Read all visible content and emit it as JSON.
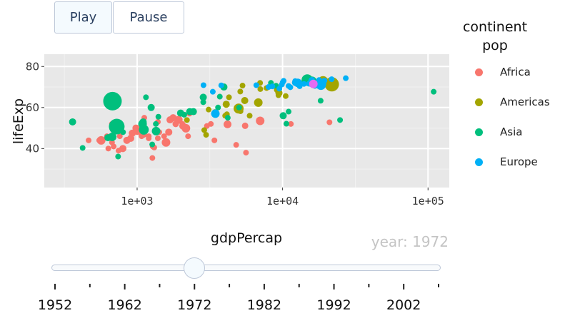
{
  "controls": {
    "play_label": "Play",
    "pause_label": "Pause"
  },
  "legend": {
    "title_line1": "continent",
    "title_line2": "pop",
    "items": [
      {
        "label": "Africa",
        "color": "#f8766d"
      },
      {
        "label": "Americas",
        "color": "#a3a500"
      },
      {
        "label": "Asia",
        "color": "#00bf7d"
      },
      {
        "label": "Europe",
        "color": "#00b0f6"
      }
    ],
    "extra_color": "#e76bf3"
  },
  "slider": {
    "current_value_label": "year: 1972",
    "current": 1972,
    "range": [
      1952,
      2007
    ],
    "tick_labels": [
      "1952",
      "1962",
      "1972",
      "1982",
      "1992",
      "2002"
    ]
  },
  "chart_data": {
    "type": "scatter",
    "xlabel": "gdpPercap",
    "ylabel": "lifeExp",
    "xscale": "log",
    "xlim": [
      230,
      140000
    ],
    "ylim": [
      21,
      86
    ],
    "xticks": [
      1000,
      10000,
      100000
    ],
    "xtick_labels": [
      "1e+03",
      "1e+04",
      "1e+05"
    ],
    "yticks": [
      40,
      60,
      80
    ],
    "ytick_labels": [
      "40",
      "60",
      "80"
    ],
    "grid": true,
    "legend_position": "right",
    "series": [
      {
        "name": "Africa",
        "color": "#f8766d",
        "points": [
          {
            "x": 4183,
            "y": 51.8,
            "r": 5.5
          },
          {
            "x": 4797,
            "y": 41.8,
            "r": 4
          },
          {
            "x": 1106,
            "y": 47.0,
            "r": 5
          },
          {
            "x": 1001,
            "y": 48.0,
            "r": 4
          },
          {
            "x": 549,
            "y": 44.0,
            "r": 4
          },
          {
            "x": 464,
            "y": 44.0,
            "r": 4
          },
          {
            "x": 1684,
            "y": 54.0,
            "r": 5
          },
          {
            "x": 1532,
            "y": 46.0,
            "r": 4
          },
          {
            "x": 1074,
            "y": 46.0,
            "r": 4
          },
          {
            "x": 1072,
            "y": 46.5,
            "r": 4
          },
          {
            "x": 904,
            "y": 45.0,
            "r": 5
          },
          {
            "x": 3213,
            "y": 52.0,
            "r": 4
          },
          {
            "x": 2061,
            "y": 51.0,
            "r": 5
          },
          {
            "x": 1389,
            "y": 53.0,
            "r": 4
          },
          {
            "x": 5527,
            "y": 51.1,
            "r": 4.5
          },
          {
            "x": 672,
            "y": 43.0,
            "r": 4
          },
          {
            "x": 566,
            "y": 44.0,
            "r": 6
          },
          {
            "x": 11401,
            "y": 52.0,
            "r": 4
          },
          {
            "x": 745,
            "y": 39.0,
            "r": 4
          },
          {
            "x": 1388,
            "y": 45.0,
            "r": 4
          },
          {
            "x": 1202,
            "y": 46.0,
            "r": 4
          },
          {
            "x": 1201,
            "y": 45.0,
            "r": 4
          },
          {
            "x": 1279,
            "y": 41.0,
            "r": 4
          },
          {
            "x": 1311,
            "y": 40.5,
            "r": 4
          },
          {
            "x": 21011,
            "y": 52.8,
            "r": 4
          },
          {
            "x": 1273,
            "y": 35.4,
            "r": 4
          },
          {
            "x": 2240,
            "y": 46.0,
            "r": 4
          },
          {
            "x": 3017,
            "y": 51.0,
            "r": 4
          },
          {
            "x": 1930,
            "y": 54.0,
            "r": 5.5
          },
          {
            "x": 5604,
            "y": 38.0,
            "r": 4
          },
          {
            "x": 634,
            "y": 40.0,
            "r": 4
          },
          {
            "x": 2165,
            "y": 49.9,
            "r": 6
          },
          {
            "x": 1420,
            "y": 48.0,
            "r": 4
          },
          {
            "x": 927,
            "y": 47.5,
            "r": 5
          },
          {
            "x": 7013,
            "y": 53.5,
            "r": 6
          },
          {
            "x": 1768,
            "y": 55.0,
            "r": 5
          },
          {
            "x": 798,
            "y": 40.0,
            "r": 5
          },
          {
            "x": 982,
            "y": 50.0,
            "r": 5
          },
          {
            "x": 671,
            "y": 52.0,
            "r": 4
          },
          {
            "x": 2290,
            "y": 57.0,
            "r": 4
          },
          {
            "x": 1842,
            "y": 52.0,
            "r": 4.5
          },
          {
            "x": 760,
            "y": 46.0,
            "r": 4
          },
          {
            "x": 850,
            "y": 44.0,
            "r": 5
          },
          {
            "x": 1050,
            "y": 49.0,
            "r": 5
          },
          {
            "x": 1650,
            "y": 48.0,
            "r": 5
          },
          {
            "x": 2050,
            "y": 52.0,
            "r": 4
          },
          {
            "x": 3400,
            "y": 44.0,
            "r": 4
          },
          {
            "x": 690,
            "y": 41.0,
            "r": 4
          },
          {
            "x": 1120,
            "y": 55.0,
            "r": 4
          },
          {
            "x": 620,
            "y": 46.0,
            "r": 4
          },
          {
            "x": 1580,
            "y": 43.0,
            "r": 6
          },
          {
            "x": 1960,
            "y": 54.0,
            "r": 4
          }
        ]
      },
      {
        "name": "Americas",
        "color": "#a3a500",
        "points": [
          {
            "x": 9443,
            "y": 67.1,
            "r": 5
          },
          {
            "x": 2980,
            "y": 46.7,
            "r": 4
          },
          {
            "x": 4985,
            "y": 59.5,
            "r": 7
          },
          {
            "x": 18971,
            "y": 72.9,
            "r": 7
          },
          {
            "x": 5494,
            "y": 63.4,
            "r": 5
          },
          {
            "x": 4098,
            "y": 61.6,
            "r": 5
          },
          {
            "x": 5118,
            "y": 67.8,
            "r": 4
          },
          {
            "x": 5305,
            "y": 70.7,
            "r": 4
          },
          {
            "x": 3430,
            "y": 57.8,
            "r": 4
          },
          {
            "x": 4141,
            "y": 56.7,
            "r": 4
          },
          {
            "x": 5139,
            "y": 58.2,
            "r": 4
          },
          {
            "x": 4032,
            "y": 56.0,
            "r": 4
          },
          {
            "x": 2894,
            "y": 49.0,
            "r": 4
          },
          {
            "x": 2200,
            "y": 53.9,
            "r": 4
          },
          {
            "x": 7031,
            "y": 69.0,
            "r": 4
          },
          {
            "x": 6809,
            "y": 62.4,
            "r": 6
          },
          {
            "x": 3101,
            "y": 59.0,
            "r": 4
          },
          {
            "x": 9371,
            "y": 66.0,
            "r": 4
          },
          {
            "x": 4281,
            "y": 65.0,
            "r": 4
          },
          {
            "x": 5937,
            "y": 56.0,
            "r": 4
          },
          {
            "x": 7003,
            "y": 72.0,
            "r": 4
          },
          {
            "x": 7760,
            "y": 69.5,
            "r": 4
          },
          {
            "x": 21806,
            "y": 71.3,
            "r": 10
          },
          {
            "x": 9231,
            "y": 68.7,
            "r": 5
          },
          {
            "x": 10505,
            "y": 65.6,
            "r": 4
          }
        ]
      },
      {
        "name": "Asia",
        "color": "#00bf7d",
        "points": [
          {
            "x": 740,
            "y": 36.1,
            "r": 4
          },
          {
            "x": 18269,
            "y": 63.3,
            "r": 4
          },
          {
            "x": 630,
            "y": 45.3,
            "r": 5
          },
          {
            "x": 422,
            "y": 40.3,
            "r": 4
          },
          {
            "x": 677,
            "y": 63.1,
            "r": 13
          },
          {
            "x": 8316,
            "y": 72.0,
            "r": 4
          },
          {
            "x": 724,
            "y": 50.7,
            "r": 11
          },
          {
            "x": 1111,
            "y": 49.2,
            "r": 7
          },
          {
            "x": 1249,
            "y": 60.0,
            "r": 5
          },
          {
            "x": 5023,
            "y": 60.0,
            "r": 4
          },
          {
            "x": 9022,
            "y": 70.6,
            "r": 4
          },
          {
            "x": 14779,
            "y": 73.4,
            "r": 8
          },
          {
            "x": 2110,
            "y": 56.5,
            "r": 4
          },
          {
            "x": 109348,
            "y": 67.7,
            "r": 4
          },
          {
            "x": 3702,
            "y": 65.3,
            "r": 4
          },
          {
            "x": 2849,
            "y": 65.0,
            "r": 5
          },
          {
            "x": 2850,
            "y": 62.6,
            "r": 4
          },
          {
            "x": 4200,
            "y": 55.0,
            "r": 4
          },
          {
            "x": 674,
            "y": 45.7,
            "r": 6
          },
          {
            "x": 1100,
            "y": 53.0,
            "r": 5
          },
          {
            "x": 1345,
            "y": 52.0,
            "r": 4
          },
          {
            "x": 10619,
            "y": 52.1,
            "r": 4
          },
          {
            "x": 1090,
            "y": 52.0,
            "r": 6
          },
          {
            "x": 1400,
            "y": 55.5,
            "r": 4
          },
          {
            "x": 24837,
            "y": 53.9,
            "r": 4
          },
          {
            "x": 2436,
            "y": 58.0,
            "r": 5
          },
          {
            "x": 3600,
            "y": 60.0,
            "r": 4
          },
          {
            "x": 1150,
            "y": 65.0,
            "r": 4
          },
          {
            "x": 1990,
            "y": 57.3,
            "r": 5
          },
          {
            "x": 1350,
            "y": 48.5,
            "r": 6
          },
          {
            "x": 2300,
            "y": 58.0,
            "r": 5
          },
          {
            "x": 3950,
            "y": 70.0,
            "r": 5
          },
          {
            "x": 11000,
            "y": 58.0,
            "r": 4
          },
          {
            "x": 360,
            "y": 53.0,
            "r": 5
          },
          {
            "x": 800,
            "y": 48.0,
            "r": 4
          },
          {
            "x": 1270,
            "y": 42.0,
            "r": 4
          },
          {
            "x": 10100,
            "y": 56.0,
            "r": 5
          },
          {
            "x": 2850,
            "y": 65.0,
            "r": 4
          },
          {
            "x": 16000,
            "y": 73.0,
            "r": 6
          }
        ]
      },
      {
        "name": "Europe",
        "color": "#00b0f6",
        "points": [
          {
            "x": 3313,
            "y": 67.7,
            "r": 4
          },
          {
            "x": 16662,
            "y": 70.6,
            "r": 4
          },
          {
            "x": 19117,
            "y": 71.4,
            "r": 4
          },
          {
            "x": 2860,
            "y": 70.9,
            "r": 4
          },
          {
            "x": 6597,
            "y": 70.9,
            "r": 4
          },
          {
            "x": 11305,
            "y": 69.9,
            "r": 4
          },
          {
            "x": 13108,
            "y": 70.4,
            "r": 4
          },
          {
            "x": 15937,
            "y": 73.5,
            "r": 4
          },
          {
            "x": 16662,
            "y": 70.9,
            "r": 5
          },
          {
            "x": 18338,
            "y": 71.0,
            "r": 7
          },
          {
            "x": 12725,
            "y": 72.0,
            "r": 6
          },
          {
            "x": 10022,
            "y": 72.3,
            "r": 4
          },
          {
            "x": 14023,
            "y": 71.5,
            "r": 4
          },
          {
            "x": 15798,
            "y": 73.4,
            "r": 4
          },
          {
            "x": 12269,
            "y": 72.2,
            "r": 5
          },
          {
            "x": 21748,
            "y": 73.8,
            "r": 4
          },
          {
            "x": 27195,
            "y": 74.3,
            "r": 4
          },
          {
            "x": 3788,
            "y": 70.8,
            "r": 4
          },
          {
            "x": 8006,
            "y": 70.0,
            "r": 4
          },
          {
            "x": 9508,
            "y": 69.2,
            "r": 4
          },
          {
            "x": 15181,
            "y": 71.6,
            "r": 4
          },
          {
            "x": 10168,
            "y": 73.0,
            "r": 4
          },
          {
            "x": 12217,
            "y": 72.9,
            "r": 4
          },
          {
            "x": 17832,
            "y": 73.4,
            "r": 4
          },
          {
            "x": 3451,
            "y": 57.0,
            "r": 6
          },
          {
            "x": 15895,
            "y": 72.0,
            "r": 6
          },
          {
            "x": 9880,
            "y": 71.2,
            "r": 4
          },
          {
            "x": 8500,
            "y": 70.3,
            "r": 4
          },
          {
            "x": 11000,
            "y": 70.5,
            "r": 4
          },
          {
            "x": 19400,
            "y": 73.1,
            "r": 4
          }
        ]
      },
      {
        "name": "",
        "color": "#e76bf3",
        "points": [
          {
            "x": 16275,
            "y": 71.5,
            "r": 6
          }
        ]
      }
    ]
  }
}
